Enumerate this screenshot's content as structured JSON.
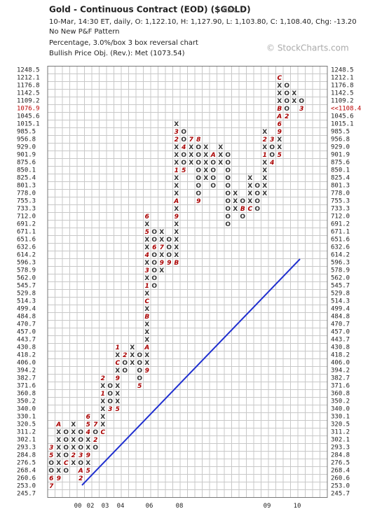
{
  "header": {
    "title": "Gold - Continuous Contract (EOD) ($GOLD)",
    "exchange": "INDX",
    "quote": "10-Mar, 14:30 ET, daily, O: 1,122.10, H: 1,127.90, L: 1,103.80, C: 1,108.40, Chg: -13.20",
    "pattern": "No New P&F Pattern",
    "box": "Percentage, 3.0%/box 3 box reversal chart",
    "objective": "Bullish Price Obj. (Rev.): Met (1073.54)"
  },
  "watermark": "© StockCharts.com",
  "pnf": {
    "levels": [
      "1248.5",
      "1212.1",
      "1176.8",
      "1142.5",
      "1109.2",
      "1076.9",
      "1045.6",
      "1015.1",
      "985.5",
      "956.8",
      "929.0",
      "901.9",
      "875.6",
      "850.1",
      "825.4",
      "801.3",
      "778.0",
      "755.3",
      "733.3",
      "712.0",
      "691.2",
      "671.1",
      "651.6",
      "632.6",
      "614.2",
      "596.3",
      "578.9",
      "562.0",
      "545.7",
      "529.8",
      "514.3",
      "499.4",
      "484.8",
      "470.7",
      "457.0",
      "443.7",
      "430.8",
      "418.2",
      "406.0",
      "394.2",
      "382.7",
      "371.6",
      "360.8",
      "350.2",
      "340.0",
      "330.1",
      "320.5",
      "311.2",
      "302.1",
      "293.3",
      "284.8",
      "276.5",
      "268.4",
      "260.6",
      "253.0",
      "245.7"
    ],
    "right_levels": [
      "1248.5",
      "1212.1",
      "1176.8",
      "1142.5",
      "1109.2",
      "<<1108.4",
      "1045.6",
      "1015.1",
      "985.5",
      "956.8",
      "929.0",
      "901.9",
      "875.6",
      "850.1",
      "825.4",
      "801.3",
      "778.0",
      "755.3",
      "733.3",
      "712.0",
      "691.2",
      "671.1",
      "651.6",
      "632.6",
      "614.2",
      "596.3",
      "578.9",
      "562.0",
      "545.7",
      "529.8",
      "514.3",
      "499.4",
      "484.8",
      "470.7",
      "457.0",
      "443.7",
      "430.8",
      "418.2",
      "406.0",
      "394.2",
      "382.7",
      "371.6",
      "360.8",
      "350.2",
      "340.0",
      "330.1",
      "320.5",
      "311.2",
      "302.1",
      "293.3",
      "284.8",
      "276.5",
      "268.4",
      "260.6",
      "253.0",
      "245.7"
    ],
    "columns": [
      {
        "top": "293.3",
        "boxes": [
          "3",
          "5",
          "O",
          "O",
          "6",
          "7"
        ]
      },
      {
        "top": "320.5",
        "boxes": [
          "A",
          "X",
          "X",
          "X",
          "X",
          "X",
          "X",
          "9"
        ]
      },
      {
        "top": "311.2",
        "boxes": [
          "O",
          "O",
          "O",
          "O",
          "C",
          "O"
        ]
      },
      {
        "top": "320.5",
        "boxes": [
          "X",
          "X",
          "X",
          "X",
          "2",
          "X"
        ]
      },
      {
        "top": "311.2",
        "boxes": [
          "O",
          "O",
          "O",
          "3",
          "O",
          "A",
          "2"
        ]
      },
      {
        "top": "330.1",
        "boxes": [
          "6",
          "5",
          "4",
          "X",
          "X",
          "9",
          "X",
          "5"
        ]
      },
      {
        "top": "320.5",
        "boxes": [
          "7",
          "O",
          "2",
          "O"
        ]
      },
      {
        "top": "382.7",
        "boxes": [
          "2",
          "X",
          "1",
          "X",
          "X",
          "X",
          "X",
          "C"
        ]
      },
      {
        "top": "371.6",
        "boxes": [
          "O",
          "O",
          "O",
          "3"
        ]
      },
      {
        "top": "430.8",
        "boxes": [
          "1",
          "X",
          "C",
          "X",
          "9",
          "X",
          "X",
          "X",
          "5"
        ]
      },
      {
        "top": "418.2",
        "boxes": [
          "2",
          "O",
          "O"
        ]
      },
      {
        "top": "430.8",
        "boxes": [
          "X",
          "X",
          "X"
        ]
      },
      {
        "top": "418.2",
        "boxes": [
          "O",
          "O",
          "O",
          "O",
          "5"
        ]
      },
      {
        "top": "712.0",
        "boxes": [
          "6",
          "X",
          "5",
          "X",
          "X",
          "4",
          "X",
          "3",
          "X",
          "1",
          "X",
          "C",
          "X",
          "B",
          "X",
          "X",
          "X",
          "A",
          "X",
          "X",
          "9"
        ]
      },
      {
        "top": "671.1",
        "boxes": [
          "O",
          "O",
          "6",
          "O",
          "O",
          "O",
          "O",
          "O"
        ]
      },
      {
        "top": "671.1",
        "boxes": [
          "X",
          "X",
          "7",
          "X",
          "9",
          "X"
        ]
      },
      {
        "top": "651.6",
        "boxes": [
          "O",
          "O",
          "O",
          "9"
        ]
      },
      {
        "top": "1015.1",
        "boxes": [
          "X",
          "3",
          "2",
          "X",
          "X",
          "X",
          "1",
          "X",
          "X",
          "X",
          "A",
          "X",
          "9",
          "X",
          "X",
          "X",
          "X",
          "X",
          "B"
        ]
      },
      {
        "top": "985.5",
        "boxes": [
          "O",
          "O",
          "4",
          "O",
          "O",
          "5"
        ]
      },
      {
        "top": "956.8",
        "boxes": [
          "7",
          "X",
          "X",
          "X"
        ]
      },
      {
        "top": "956.8",
        "boxes": [
          "8",
          "O",
          "O",
          "O",
          "O",
          "O",
          "O",
          "O",
          "9"
        ]
      },
      {
        "top": "929.0",
        "boxes": [
          "X",
          "X",
          "X",
          "X",
          "X"
        ]
      },
      {
        "top": "901.9",
        "boxes": [
          "A",
          "O",
          "O",
          "O",
          "O"
        ]
      },
      {
        "top": "929.0",
        "boxes": [
          "X",
          "X",
          "X"
        ]
      },
      {
        "top": "901.9",
        "boxes": [
          "O",
          "O",
          "O",
          "O",
          "O",
          "O",
          "O",
          "O",
          "O",
          "O"
        ]
      },
      {
        "top": "778.0",
        "boxes": [
          "X",
          "X",
          "X"
        ]
      },
      {
        "top": "755.3",
        "boxes": [
          "O",
          "B",
          "O"
        ]
      },
      {
        "top": "825.4",
        "boxes": [
          "X",
          "X",
          "X",
          "X",
          "C"
        ]
      },
      {
        "top": "801.3",
        "boxes": [
          "O",
          "O",
          "O",
          "O"
        ]
      },
      {
        "top": "985.5",
        "boxes": [
          "X",
          "2",
          "X",
          "1",
          "X",
          "X",
          "X",
          "X",
          "X"
        ]
      },
      {
        "top": "956.8",
        "boxes": [
          "3",
          "O",
          "O",
          "4"
        ]
      },
      {
        "top": "1212.1",
        "boxes": [
          "C",
          "X",
          "X",
          "X",
          "B",
          "A",
          "6",
          "9",
          "X",
          "X",
          "5"
        ]
      },
      {
        "top": "1176.8",
        "boxes": [
          "O",
          "O",
          "O",
          "O",
          "2"
        ]
      },
      {
        "top": "1142.5",
        "boxes": [
          "X",
          "X"
        ]
      },
      {
        "top": "1109.2",
        "boxes": [
          "O",
          "3"
        ]
      }
    ],
    "years": [
      "00",
      "02",
      "03",
      "04",
      "06",
      "08",
      "09",
      "10"
    ]
  }
}
